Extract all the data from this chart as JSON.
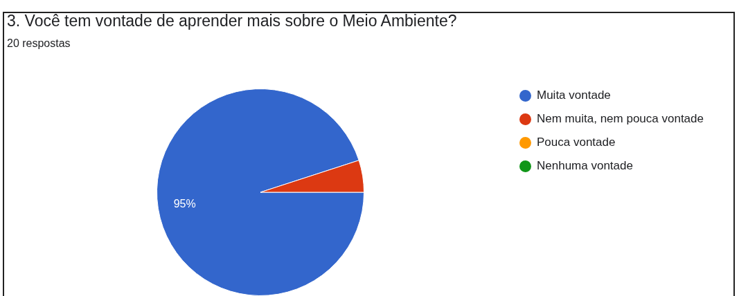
{
  "chart_data": {
    "type": "pie",
    "title": "3. Você tem vontade de aprender mais sobre o Meio Ambiente?",
    "subtitle": "20 respostas",
    "categories": [
      "Muita vontade",
      "Nem muita, nem pouca vontade",
      "Pouca vontade",
      "Nenhuma vontade"
    ],
    "values": [
      95,
      5,
      0,
      0
    ],
    "colors": [
      "#3366cc",
      "#dc3912",
      "#ff9900",
      "#109618"
    ],
    "value_labels": [
      "95%",
      null,
      null,
      null
    ],
    "legend": "right"
  }
}
